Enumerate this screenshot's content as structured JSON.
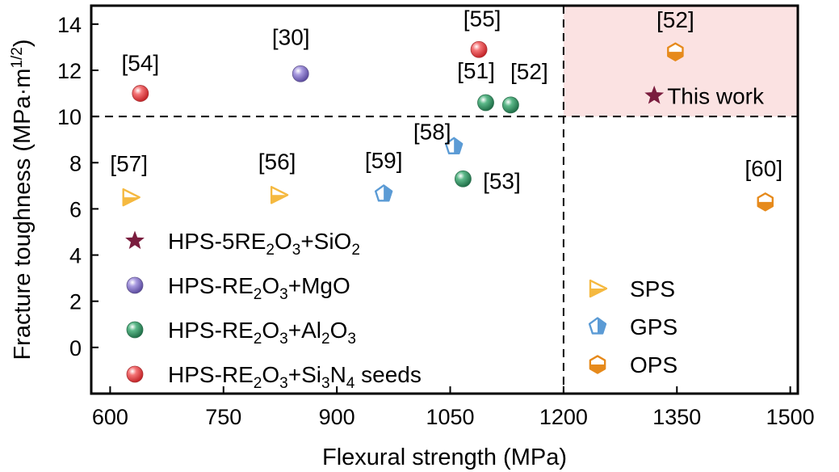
{
  "chart_data": {
    "type": "scatter",
    "title": "",
    "xlabel": "Flexural strength (MPa)",
    "ylabel": "Fracture toughness (MPa·m1/2)",
    "ylabel_parts": {
      "main": "Fracture toughness (MPa·m",
      "sup": "1/2",
      "end": ")"
    },
    "xlim": [
      575,
      1510
    ],
    "ylim": [
      -2.0,
      14.8
    ],
    "x_ticks": [
      600,
      750,
      900,
      1050,
      1200,
      1350,
      1500
    ],
    "y_ticks": [
      0,
      2,
      4,
      6,
      8,
      10,
      12,
      14
    ],
    "threshold_lines": {
      "x": 1200,
      "y": 10
    },
    "highlight_region": {
      "x": [
        1200,
        1510
      ],
      "y": [
        10,
        14.8
      ],
      "color": "#fbe2e2"
    },
    "colors": {
      "this_work": "#7a1d3e",
      "mgo": "#8877c4",
      "al2o3": "#3f9a6c",
      "si3n4": "#ec4a4d",
      "sps": "#f5b940",
      "gps": "#5b9bd5",
      "ops": "#e68a1c"
    },
    "points": [
      {
        "ref": "[54]",
        "x": 640,
        "y": 11.0,
        "group": "si3n4",
        "shape": "sphere"
      },
      {
        "ref": "[30]",
        "x": 852,
        "y": 11.85,
        "group": "mgo",
        "shape": "sphere"
      },
      {
        "ref": "[55]",
        "x": 1088,
        "y": 12.9,
        "group": "si3n4",
        "shape": "sphere"
      },
      {
        "ref": "[51]",
        "x": 1097,
        "y": 10.6,
        "group": "al2o3",
        "shape": "sphere"
      },
      {
        "ref": "[52]",
        "x": 1130,
        "y": 10.5,
        "group": "al2o3",
        "shape": "sphere"
      },
      {
        "ref": "[53]",
        "x": 1067,
        "y": 7.3,
        "group": "al2o3",
        "shape": "sphere"
      },
      {
        "ref": "[57]",
        "x": 627,
        "y": 6.5,
        "group": "sps",
        "shape": "triangle"
      },
      {
        "ref": "[56]",
        "x": 823,
        "y": 6.6,
        "group": "sps",
        "shape": "triangle"
      },
      {
        "ref": "[59]",
        "x": 962,
        "y": 6.65,
        "group": "gps",
        "shape": "pentagon"
      },
      {
        "ref": "[58]",
        "x": 1055,
        "y": 8.7,
        "group": "gps",
        "shape": "pentagon"
      },
      {
        "ref": "[52]",
        "x": 1348,
        "y": 12.8,
        "group": "ops",
        "shape": "hexagon"
      },
      {
        "ref": "[60]",
        "x": 1467,
        "y": 6.3,
        "group": "ops",
        "shape": "hexagon"
      }
    ],
    "this_work": {
      "label": "This work",
      "x": 1320,
      "y": 10.9
    },
    "legend_materials": [
      {
        "group": "this_work",
        "shape": "star",
        "parts": [
          "HPS-5RE",
          "2",
          "O",
          "3",
          "+SiO",
          "2"
        ]
      },
      {
        "group": "mgo",
        "shape": "sphere",
        "parts": [
          "HPS-RE",
          "2",
          "O",
          "3",
          "+MgO"
        ]
      },
      {
        "group": "al2o3",
        "shape": "sphere",
        "parts": [
          "HPS-RE",
          "2",
          "O",
          "3",
          "+Al",
          "2",
          "O",
          "3"
        ]
      },
      {
        "group": "si3n4",
        "shape": "sphere",
        "parts": [
          "HPS-RE",
          "2",
          "O",
          "3",
          "+Si",
          "3",
          "N",
          "4",
          " seeds"
        ]
      }
    ],
    "legend_methods": [
      {
        "group": "sps",
        "shape": "triangle",
        "label": "SPS"
      },
      {
        "group": "gps",
        "shape": "pentagon",
        "label": "GPS"
      },
      {
        "group": "ops",
        "shape": "hexagon",
        "label": "OPS"
      }
    ]
  }
}
